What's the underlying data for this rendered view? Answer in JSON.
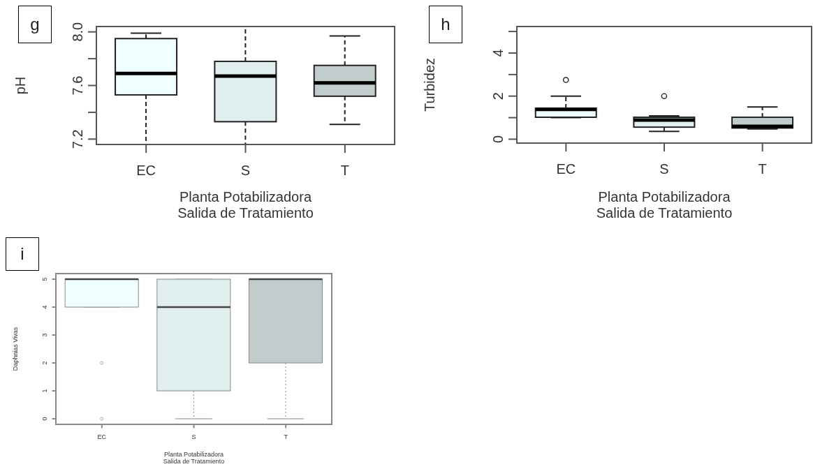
{
  "chart_data": [
    {
      "type": "box",
      "annotations": [
        "g"
      ],
      "ylabel": "pH",
      "xlabel": "Planta Potabilizadora\nSalida de Tratamiento",
      "categories": [
        "EC",
        "S",
        "T"
      ],
      "colors": [
        "#f0ffff",
        "#e0eeee",
        "#c1cdcd"
      ],
      "line_style": "dashed",
      "marker": "circle",
      "ylim": [
        7.16,
        8.04
      ],
      "yticks": [
        {
          "value": 7.2,
          "label": "7.2"
        },
        {
          "value": 7.4,
          "label": null
        },
        {
          "value": 7.6,
          "label": "7.6"
        },
        {
          "value": 7.8,
          "label": null
        },
        {
          "value": 8,
          "label": "8.0"
        }
      ],
      "boxes": [
        {
          "low": 7.16,
          "q1": 7.53,
          "median": 7.69,
          "q3": 7.95,
          "high": 7.99
        },
        {
          "low": 7.16,
          "q1": 7.33,
          "median": 7.67,
          "q3": 7.78,
          "high": 8.04
        },
        {
          "low": 7.31,
          "q1": 7.52,
          "median": 7.62,
          "q3": 7.75,
          "high": 7.97
        }
      ]
    },
    {
      "type": "box",
      "annotations": [
        "h"
      ],
      "ylabel": "Turbidez",
      "xlabel": "Planta Potabilizadora\nSalida de Tratamiento",
      "categories": [
        "EC",
        "S",
        "T"
      ],
      "colors": [
        "#f0ffff",
        "#e0eeee",
        "#c1cdcd"
      ],
      "line_style": "dashed",
      "marker": "circle",
      "ylim": [
        -0.18,
        5.23
      ],
      "yticks": [
        0,
        {
          "value": 1,
          "label": null
        },
        2,
        {
          "value": 3,
          "label": null
        },
        4,
        {
          "value": 5,
          "label": null
        }
      ],
      "boxes": [
        {
          "low": 1.0,
          "q1": 1.02,
          "median": 1.38,
          "q3": 1.44,
          "high": 2.0,
          "outliers": [
            2.75
          ]
        },
        {
          "low": 0.36,
          "q1": 0.56,
          "median": 0.89,
          "q3": 1.02,
          "high": 1.08,
          "outliers": [
            2.0
          ]
        },
        {
          "low": 0.48,
          "q1": 0.52,
          "median": 0.6,
          "q3": 1.02,
          "high": 1.5
        }
      ]
    },
    {
      "type": "box",
      "annotations": [
        "i"
      ],
      "ylabel": "Daphnias Vivas",
      "xlabel": "Planta Potabilizadora\nSalida de Tratamiento",
      "categories": [
        "EC",
        "S",
        "T"
      ],
      "colors": [
        "#f0ffff",
        "#e0eeee",
        "#c1cdcd"
      ],
      "line_style": "dotted",
      "marker": "circle",
      "ylim": [
        -0.2,
        5.2
      ],
      "yticks": [
        0,
        1,
        2,
        3,
        4,
        5
      ],
      "boxes": [
        {
          "low": 4,
          "q1": 4,
          "median": 5,
          "q3": 5,
          "high": 5,
          "outliers": [
            2,
            0
          ]
        },
        {
          "low": 0,
          "q1": 1,
          "median": 4,
          "q3": 5,
          "high": 5
        },
        {
          "low": 0,
          "q1": 2,
          "median": 5,
          "q3": 5,
          "high": 5
        }
      ]
    }
  ]
}
